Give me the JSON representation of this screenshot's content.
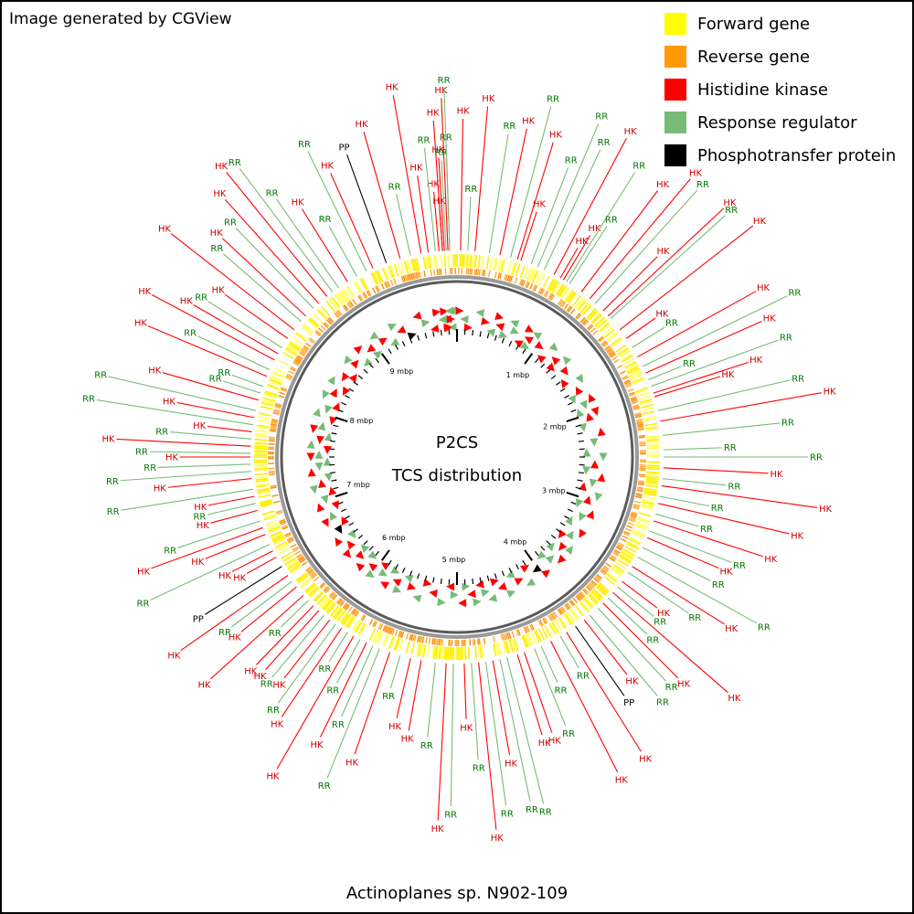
{
  "credit": "Image generated by CGView",
  "legend": [
    {
      "label": "Forward gene",
      "color": "#ffff00"
    },
    {
      "label": "Reverse gene",
      "color": "#ff9900"
    },
    {
      "label": "Histidine kinase",
      "color": "#ff0000"
    },
    {
      "label": "Response regulator",
      "color": "#77bb77"
    },
    {
      "label": "Phosphotransfer protein",
      "color": "#000000"
    }
  ],
  "center": {
    "line1": "P2CS",
    "line2": "TCS distribution"
  },
  "organism": "Actinoplanes sp. N902-109",
  "genome": {
    "ticks": [
      "1 mbp",
      "2 mbp",
      "3 mbp",
      "4 mbp",
      "5 mbp",
      "6 mbp",
      "7 mbp",
      "8 mbp",
      "9 mbp"
    ],
    "tick_positions_mbp": [
      1,
      2,
      3,
      4,
      5,
      6,
      7,
      8,
      9
    ],
    "length_mbp": 9.9
  },
  "label_colors": {
    "HK": "#cc0000",
    "RR": "#007700",
    "PP": "#000000"
  },
  "features": [
    {
      "type": "HK",
      "angle": -5
    },
    {
      "type": "HK",
      "angle": -4
    },
    {
      "type": "HK",
      "angle": -3.5
    },
    {
      "type": "RR",
      "angle": -3
    },
    {
      "type": "HK",
      "angle": -2.5
    },
    {
      "type": "RR",
      "angle": -2
    },
    {
      "type": "HK",
      "angle": 1
    },
    {
      "type": "RR",
      "angle": 3
    },
    {
      "type": "HK",
      "angle": 5
    },
    {
      "type": "RR",
      "angle": 9
    },
    {
      "type": "HK",
      "angle": 12
    },
    {
      "type": "RR",
      "angle": 15
    },
    {
      "type": "HK",
      "angle": 17
    },
    {
      "type": "HK",
      "angle": 18
    },
    {
      "type": "RR",
      "angle": 21
    },
    {
      "type": "RR",
      "angle": 23
    },
    {
      "type": "RR",
      "angle": 25
    },
    {
      "type": "HK",
      "angle": 28
    },
    {
      "type": "HK",
      "angle": 30
    },
    {
      "type": "HK",
      "angle": 31
    },
    {
      "type": "RR",
      "angle": 32
    },
    {
      "type": "RR",
      "angle": 33
    },
    {
      "type": "HK",
      "angle": 37
    },
    {
      "type": "HK",
      "angle": 40
    },
    {
      "type": "RR",
      "angle": 42
    },
    {
      "type": "HK",
      "angle": 45
    },
    {
      "type": "HK",
      "angle": 47
    },
    {
      "type": "RR",
      "angle": 48
    },
    {
      "type": "HK",
      "angle": 52
    },
    {
      "type": "HK",
      "angle": 55
    },
    {
      "type": "RR",
      "angle": 58
    },
    {
      "type": "HK",
      "angle": 61
    },
    {
      "type": "RR",
      "angle": 64
    },
    {
      "type": "HK",
      "angle": 66
    },
    {
      "type": "RR",
      "angle": 68
    },
    {
      "type": "RR",
      "angle": 70
    },
    {
      "type": "HK",
      "angle": 72
    },
    {
      "type": "HK",
      "angle": 73
    },
    {
      "type": "RR",
      "angle": 77
    },
    {
      "type": "HK",
      "angle": 80
    },
    {
      "type": "RR",
      "angle": 84
    },
    {
      "type": "RR",
      "angle": 88
    },
    {
      "type": "RR",
      "angle": 90
    },
    {
      "type": "HK",
      "angle": 93
    },
    {
      "type": "RR",
      "angle": 96
    },
    {
      "type": "HK",
      "angle": 98
    },
    {
      "type": "RR",
      "angle": 101
    },
    {
      "type": "HK",
      "angle": 103
    },
    {
      "type": "RR",
      "angle": 106
    },
    {
      "type": "HK",
      "angle": 108
    },
    {
      "type": "RR",
      "angle": 111
    },
    {
      "type": "HK",
      "angle": 113
    },
    {
      "type": "RR",
      "angle": 116
    },
    {
      "type": "RR",
      "angle": 119
    },
    {
      "type": "HK",
      "angle": 122
    },
    {
      "type": "RR",
      "angle": 124
    },
    {
      "type": "HK",
      "angle": 127
    },
    {
      "type": "RR",
      "angle": 129
    },
    {
      "type": "HK",
      "angle": 131
    },
    {
      "type": "RR",
      "angle": 133
    },
    {
      "type": "HK",
      "angle": 135
    },
    {
      "type": "RR",
      "angle": 137
    },
    {
      "type": "RR",
      "angle": 140
    },
    {
      "type": "HK",
      "angle": 142
    },
    {
      "type": "PP",
      "angle": 145
    },
    {
      "type": "HK",
      "angle": 148
    },
    {
      "type": "RR",
      "angle": 150
    },
    {
      "type": "HK",
      "angle": 153
    },
    {
      "type": "RR",
      "angle": 156
    },
    {
      "type": "RR",
      "angle": 158
    },
    {
      "type": "HK",
      "angle": 161
    },
    {
      "type": "HK",
      "angle": 163
    },
    {
      "type": "RR",
      "angle": 166
    },
    {
      "type": "RR",
      "angle": 168
    },
    {
      "type": "HK",
      "angle": 170
    },
    {
      "type": "RR",
      "angle": 172
    },
    {
      "type": "HK",
      "angle": 174
    },
    {
      "type": "RR",
      "angle": 176
    },
    {
      "type": "HK",
      "angle": 178
    },
    {
      "type": "RR",
      "angle": 181
    },
    {
      "type": "HK",
      "angle": 183
    },
    {
      "type": "RR",
      "angle": 186
    },
    {
      "type": "HK",
      "angle": 190
    },
    {
      "type": "HK",
      "angle": 193
    },
    {
      "type": "RR",
      "angle": 196
    },
    {
      "type": "HK",
      "angle": 199
    },
    {
      "type": "RR",
      "angle": 202
    },
    {
      "type": "RR",
      "angle": 204
    },
    {
      "type": "HK",
      "angle": 206
    },
    {
      "type": "RR",
      "angle": 208
    },
    {
      "type": "HK",
      "angle": 210
    },
    {
      "type": "RR",
      "angle": 212
    },
    {
      "type": "HK",
      "angle": 214
    },
    {
      "type": "RR",
      "angle": 216
    },
    {
      "type": "HK",
      "angle": 218
    },
    {
      "type": "RR",
      "angle": 220
    },
    {
      "type": "HK",
      "angle": 222
    },
    {
      "type": "HK",
      "angle": 224
    },
    {
      "type": "RR",
      "angle": 226
    },
    {
      "type": "HK",
      "angle": 228
    },
    {
      "type": "HK",
      "angle": 231
    },
    {
      "type": "RR",
      "angle": 233
    },
    {
      "type": "HK",
      "angle": 235
    },
    {
      "type": "PP",
      "angle": 238
    },
    {
      "type": "HK",
      "angle": 241
    },
    {
      "type": "HK",
      "angle": 243
    },
    {
      "type": "RR",
      "angle": 245
    },
    {
      "type": "HK",
      "angle": 248
    },
    {
      "type": "HK",
      "angle": 250
    },
    {
      "type": "RR",
      "angle": 252
    },
    {
      "type": "HK",
      "angle": 255
    },
    {
      "type": "RR",
      "angle": 257
    },
    {
      "type": "HK",
      "angle": 259
    },
    {
      "type": "RR",
      "angle": 261
    },
    {
      "type": "HK",
      "angle": 264
    },
    {
      "type": "RR",
      "angle": 266
    },
    {
      "type": "RR",
      "angle": 268
    },
    {
      "type": "HK",
      "angle": 270
    },
    {
      "type": "RR",
      "angle": 271
    },
    {
      "type": "HK",
      "angle": 273
    },
    {
      "type": "RR",
      "angle": 275
    },
    {
      "type": "HK",
      "angle": 277
    },
    {
      "type": "RR",
      "angle": 279
    },
    {
      "type": "HK",
      "angle": 281
    },
    {
      "type": "RR",
      "angle": 283
    },
    {
      "type": "HK",
      "angle": 286
    },
    {
      "type": "RR",
      "angle": 288
    },
    {
      "type": "RR",
      "angle": 290
    },
    {
      "type": "HK",
      "angle": 293
    },
    {
      "type": "RR",
      "angle": 295
    },
    {
      "type": "HK",
      "angle": 298
    },
    {
      "type": "HK",
      "angle": 300
    },
    {
      "type": "RR",
      "angle": 302
    },
    {
      "type": "HK",
      "angle": 305
    },
    {
      "type": "HK",
      "angle": 308
    },
    {
      "type": "RR",
      "angle": 311
    },
    {
      "type": "HK",
      "angle": 313
    },
    {
      "type": "RR",
      "angle": 316
    },
    {
      "type": "HK",
      "angle": 318
    },
    {
      "type": "HK",
      "angle": 321
    },
    {
      "type": "RR",
      "angle": 323
    },
    {
      "type": "RR",
      "angle": 325
    },
    {
      "type": "HK",
      "angle": 328
    },
    {
      "type": "RR",
      "angle": 331
    },
    {
      "type": "RR",
      "angle": 334
    },
    {
      "type": "HK",
      "angle": 336
    },
    {
      "type": "PP",
      "angle": 340
    },
    {
      "type": "HK",
      "angle": 344
    },
    {
      "type": "RR",
      "angle": 347
    },
    {
      "type": "HK",
      "angle": 350
    },
    {
      "type": "HK",
      "angle": 352
    },
    {
      "type": "RR",
      "angle": 354
    },
    {
      "type": "HK",
      "angle": 356
    },
    {
      "type": "RR",
      "angle": 358
    }
  ]
}
